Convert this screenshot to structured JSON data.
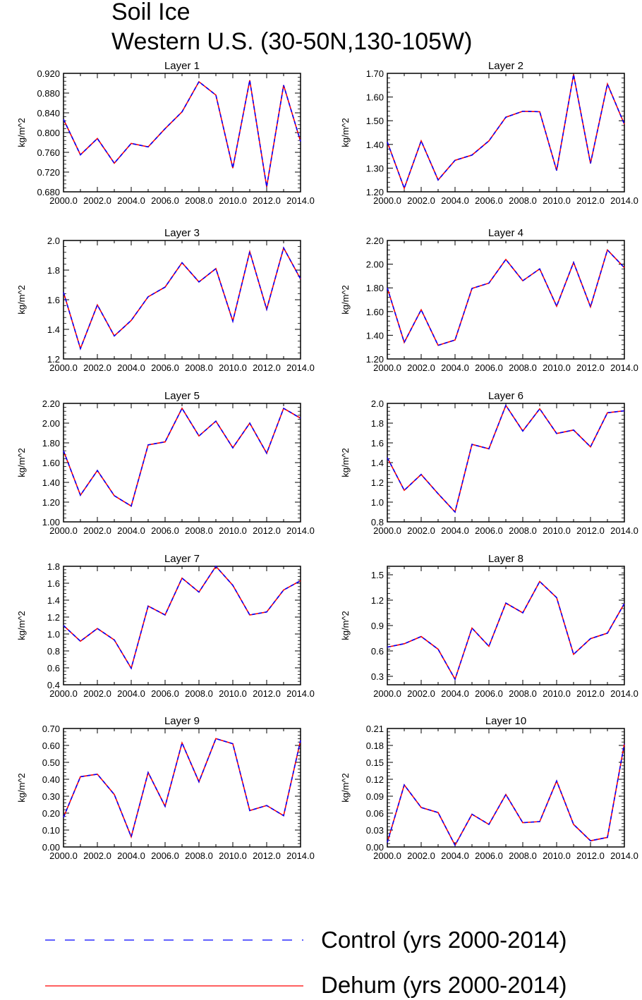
{
  "title_line1": "Soil Ice",
  "title_line2": "Western U.S. (30-50N,130-105W)",
  "colors": {
    "control": "#0000ff",
    "dehum": "#ff0000"
  },
  "legend": [
    {
      "name": "Control (yrs 2000-2014)",
      "style": "dashed",
      "color": "#0000ff"
    },
    {
      "name": "Dehum (yrs 2000-2014)",
      "style": "solid",
      "color": "#ff0000"
    }
  ],
  "chart_data": [
    {
      "type": "line",
      "title": "Layer 1",
      "ylabel": "kg/m^2",
      "x": [
        2000,
        2001,
        2002,
        2003,
        2004,
        2005,
        2006,
        2007,
        2008,
        2009,
        2010,
        2011,
        2012,
        2013,
        2014
      ],
      "xticks": [
        "2000.0",
        "2002.0",
        "2004.0",
        "2006.0",
        "2008.0",
        "2010.0",
        "2012.0",
        "2014.0"
      ],
      "ylim": [
        0.68,
        0.92
      ],
      "yticks": [
        "0.680",
        "0.720",
        "0.760",
        "0.800",
        "0.840",
        "0.880",
        "0.920"
      ],
      "series": [
        {
          "name": "Control (yrs 2000-2014)",
          "values": [
            0.827,
            0.755,
            0.788,
            0.738,
            0.778,
            0.771,
            0.808,
            0.842,
            0.903,
            0.876,
            0.728,
            0.906,
            0.69,
            0.896,
            0.782
          ]
        },
        {
          "name": "Dehum (yrs 2000-2014)",
          "values": [
            0.827,
            0.755,
            0.788,
            0.738,
            0.778,
            0.771,
            0.808,
            0.842,
            0.903,
            0.876,
            0.728,
            0.906,
            0.69,
            0.896,
            0.782
          ]
        }
      ]
    },
    {
      "type": "line",
      "title": "Layer 2",
      "ylabel": "kg/m^2",
      "x": [
        2000,
        2001,
        2002,
        2003,
        2004,
        2005,
        2006,
        2007,
        2008,
        2009,
        2010,
        2011,
        2012,
        2013,
        2014
      ],
      "xticks": [
        "2000.0",
        "2002.0",
        "2004.0",
        "2006.0",
        "2008.0",
        "2010.0",
        "2012.0",
        "2014.0"
      ],
      "ylim": [
        1.2,
        1.7
      ],
      "yticks": [
        "1.20",
        "1.30",
        "1.40",
        "1.50",
        "1.60",
        "1.70"
      ],
      "series": [
        {
          "name": "Control (yrs 2000-2014)",
          "values": [
            1.41,
            1.215,
            1.415,
            1.25,
            1.333,
            1.355,
            1.415,
            1.515,
            1.54,
            1.538,
            1.29,
            1.695,
            1.32,
            1.655,
            1.485
          ]
        },
        {
          "name": "Dehum (yrs 2000-2014)",
          "values": [
            1.41,
            1.215,
            1.415,
            1.25,
            1.333,
            1.355,
            1.415,
            1.515,
            1.54,
            1.538,
            1.29,
            1.695,
            1.32,
            1.655,
            1.485
          ]
        }
      ]
    },
    {
      "type": "line",
      "title": "Layer 3",
      "ylabel": "kg/m^2",
      "x": [
        2000,
        2001,
        2002,
        2003,
        2004,
        2005,
        2006,
        2007,
        2008,
        2009,
        2010,
        2011,
        2012,
        2013,
        2014
      ],
      "xticks": [
        "2000.0",
        "2002.0",
        "2004.0",
        "2006.0",
        "2008.0",
        "2010.0",
        "2012.0",
        "2014.0"
      ],
      "ylim": [
        1.2,
        2.0
      ],
      "yticks": [
        "1.2",
        "1.4",
        "1.6",
        "1.8",
        "2.0"
      ],
      "series": [
        {
          "name": "Control (yrs 2000-2014)",
          "values": [
            1.65,
            1.27,
            1.565,
            1.355,
            1.46,
            1.62,
            1.685,
            1.85,
            1.72,
            1.81,
            1.455,
            1.925,
            1.535,
            1.95,
            1.74
          ]
        },
        {
          "name": "Dehum (yrs 2000-2014)",
          "values": [
            1.65,
            1.27,
            1.565,
            1.355,
            1.46,
            1.62,
            1.685,
            1.85,
            1.72,
            1.81,
            1.455,
            1.925,
            1.535,
            1.95,
            1.74
          ]
        }
      ]
    },
    {
      "type": "line",
      "title": "Layer 4",
      "ylabel": "kg/m^2",
      "x": [
        2000,
        2001,
        2002,
        2003,
        2004,
        2005,
        2006,
        2007,
        2008,
        2009,
        2010,
        2011,
        2012,
        2013,
        2014
      ],
      "xticks": [
        "2000.0",
        "2002.0",
        "2004.0",
        "2006.0",
        "2008.0",
        "2010.0",
        "2012.0",
        "2014.0"
      ],
      "ylim": [
        1.2,
        2.2
      ],
      "yticks": [
        "1.20",
        "1.40",
        "1.60",
        "1.80",
        "2.00",
        "2.20"
      ],
      "series": [
        {
          "name": "Control (yrs 2000-2014)",
          "values": [
            1.8,
            1.34,
            1.615,
            1.315,
            1.36,
            1.795,
            1.84,
            2.04,
            1.86,
            1.96,
            1.645,
            2.015,
            1.64,
            2.12,
            1.97
          ]
        },
        {
          "name": "Dehum (yrs 2000-2014)",
          "values": [
            1.8,
            1.34,
            1.615,
            1.315,
            1.36,
            1.795,
            1.84,
            2.04,
            1.86,
            1.96,
            1.645,
            2.015,
            1.64,
            2.12,
            1.97
          ]
        }
      ]
    },
    {
      "type": "line",
      "title": "Layer 5",
      "ylabel": "kg/m^2",
      "x": [
        2000,
        2001,
        2002,
        2003,
        2004,
        2005,
        2006,
        2007,
        2008,
        2009,
        2010,
        2011,
        2012,
        2013,
        2014
      ],
      "xticks": [
        "2000.0",
        "2002.0",
        "2004.0",
        "2006.0",
        "2008.0",
        "2010.0",
        "2012.0",
        "2014.0"
      ],
      "ylim": [
        1.0,
        2.2
      ],
      "yticks": [
        "1.00",
        "1.20",
        "1.40",
        "1.60",
        "1.80",
        "2.00",
        "2.20"
      ],
      "series": [
        {
          "name": "Control (yrs 2000-2014)",
          "values": [
            1.72,
            1.27,
            1.52,
            1.265,
            1.16,
            1.78,
            1.81,
            2.15,
            1.87,
            2.02,
            1.75,
            2.0,
            1.695,
            2.15,
            2.05
          ]
        },
        {
          "name": "Dehum (yrs 2000-2014)",
          "values": [
            1.72,
            1.27,
            1.52,
            1.265,
            1.16,
            1.78,
            1.81,
            2.15,
            1.87,
            2.02,
            1.75,
            2.0,
            1.695,
            2.15,
            2.05
          ]
        }
      ]
    },
    {
      "type": "line",
      "title": "Layer 6",
      "ylabel": "kg/m^2",
      "x": [
        2000,
        2001,
        2002,
        2003,
        2004,
        2005,
        2006,
        2007,
        2008,
        2009,
        2010,
        2011,
        2012,
        2013,
        2014
      ],
      "xticks": [
        "2000.0",
        "2002.0",
        "2004.0",
        "2006.0",
        "2008.0",
        "2010.0",
        "2012.0",
        "2014.0"
      ],
      "ylim": [
        0.8,
        2.0
      ],
      "yticks": [
        "0.8",
        "1.0",
        "1.2",
        "1.4",
        "1.6",
        "1.8",
        "2.0"
      ],
      "series": [
        {
          "name": "Control (yrs 2000-2014)",
          "values": [
            1.45,
            1.12,
            1.28,
            1.085,
            0.9,
            1.585,
            1.54,
            1.98,
            1.72,
            1.945,
            1.695,
            1.73,
            1.56,
            1.905,
            1.925
          ]
        },
        {
          "name": "Dehum (yrs 2000-2014)",
          "values": [
            1.45,
            1.12,
            1.28,
            1.085,
            0.9,
            1.585,
            1.54,
            1.98,
            1.72,
            1.945,
            1.695,
            1.73,
            1.56,
            1.905,
            1.925
          ]
        }
      ]
    },
    {
      "type": "line",
      "title": "Layer 7",
      "ylabel": "kg/m^2",
      "x": [
        2000,
        2001,
        2002,
        2003,
        2004,
        2005,
        2006,
        2007,
        2008,
        2009,
        2010,
        2011,
        2012,
        2013,
        2014
      ],
      "xticks": [
        "2000.0",
        "2002.0",
        "2004.0",
        "2006.0",
        "2008.0",
        "2010.0",
        "2012.0",
        "2014.0"
      ],
      "ylim": [
        0.4,
        1.8
      ],
      "yticks": [
        "0.4",
        "0.6",
        "0.8",
        "1.0",
        "1.2",
        "1.4",
        "1.6",
        "1.8"
      ],
      "series": [
        {
          "name": "Control (yrs 2000-2014)",
          "values": [
            1.1,
            0.915,
            1.065,
            0.93,
            0.595,
            1.33,
            1.225,
            1.66,
            1.495,
            1.8,
            1.575,
            1.225,
            1.26,
            1.52,
            1.63
          ]
        },
        {
          "name": "Dehum (yrs 2000-2014)",
          "values": [
            1.1,
            0.915,
            1.065,
            0.93,
            0.595,
            1.33,
            1.225,
            1.66,
            1.495,
            1.8,
            1.575,
            1.225,
            1.26,
            1.52,
            1.63
          ]
        }
      ]
    },
    {
      "type": "line",
      "title": "Layer 8",
      "ylabel": "kg/m^2",
      "x": [
        2000,
        2001,
        2002,
        2003,
        2004,
        2005,
        2006,
        2007,
        2008,
        2009,
        2010,
        2011,
        2012,
        2013,
        2014
      ],
      "xticks": [
        "2000.0",
        "2002.0",
        "2004.0",
        "2006.0",
        "2008.0",
        "2010.0",
        "2012.0",
        "2014.0"
      ],
      "ylim": [
        0.2,
        1.6
      ],
      "yticks": [
        "0.3",
        "0.6",
        "0.9",
        "1.2",
        "1.5"
      ],
      "series": [
        {
          "name": "Control (yrs 2000-2014)",
          "values": [
            0.645,
            0.685,
            0.77,
            0.62,
            0.265,
            0.87,
            0.655,
            1.165,
            1.05,
            1.42,
            1.23,
            0.56,
            0.745,
            0.81,
            1.16
          ]
        },
        {
          "name": "Dehum (yrs 2000-2014)",
          "values": [
            0.645,
            0.685,
            0.77,
            0.62,
            0.265,
            0.87,
            0.655,
            1.165,
            1.05,
            1.42,
            1.23,
            0.56,
            0.745,
            0.81,
            1.16
          ]
        }
      ]
    },
    {
      "type": "line",
      "title": "Layer 9",
      "ylabel": "kg/m^2",
      "x": [
        2000,
        2001,
        2002,
        2003,
        2004,
        2005,
        2006,
        2007,
        2008,
        2009,
        2010,
        2011,
        2012,
        2013,
        2014
      ],
      "xticks": [
        "2000.0",
        "2002.0",
        "2004.0",
        "2006.0",
        "2008.0",
        "2010.0",
        "2012.0",
        "2014.0"
      ],
      "ylim": [
        0.0,
        0.7
      ],
      "yticks": [
        "0.00",
        "0.10",
        "0.20",
        "0.30",
        "0.40",
        "0.50",
        "0.60",
        "0.70"
      ],
      "series": [
        {
          "name": "Control (yrs 2000-2014)",
          "values": [
            0.175,
            0.415,
            0.43,
            0.31,
            0.06,
            0.44,
            0.24,
            0.615,
            0.385,
            0.64,
            0.61,
            0.215,
            0.245,
            0.185,
            0.63
          ]
        },
        {
          "name": "Dehum (yrs 2000-2014)",
          "values": [
            0.175,
            0.415,
            0.43,
            0.31,
            0.06,
            0.44,
            0.24,
            0.615,
            0.385,
            0.64,
            0.61,
            0.215,
            0.245,
            0.185,
            0.63
          ]
        }
      ]
    },
    {
      "type": "line",
      "title": "Layer 10",
      "ylabel": "kg/m^2",
      "x": [
        2000,
        2001,
        2002,
        2003,
        2004,
        2005,
        2006,
        2007,
        2008,
        2009,
        2010,
        2011,
        2012,
        2013,
        2014
      ],
      "xticks": [
        "2000.0",
        "2002.0",
        "2004.0",
        "2006.0",
        "2008.0",
        "2010.0",
        "2012.0",
        "2014.0"
      ],
      "ylim": [
        0.0,
        0.21
      ],
      "yticks": [
        "0.00",
        "0.03",
        "0.06",
        "0.09",
        "0.12",
        "0.15",
        "0.18",
        "0.21"
      ],
      "series": [
        {
          "name": "Control (yrs 2000-2014)",
          "values": [
            0.008,
            0.11,
            0.07,
            0.061,
            0.003,
            0.058,
            0.04,
            0.093,
            0.043,
            0.045,
            0.117,
            0.04,
            0.011,
            0.017,
            0.183
          ]
        },
        {
          "name": "Dehum (yrs 2000-2014)",
          "values": [
            0.008,
            0.11,
            0.07,
            0.061,
            0.003,
            0.058,
            0.04,
            0.093,
            0.043,
            0.045,
            0.117,
            0.04,
            0.011,
            0.017,
            0.183
          ]
        }
      ]
    }
  ]
}
